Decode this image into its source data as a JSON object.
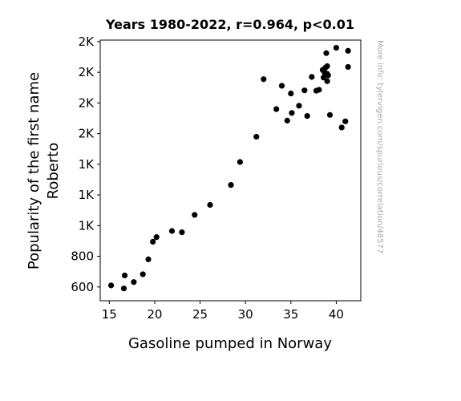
{
  "chart_data": {
    "type": "scatter",
    "title": "Years 1980-2022, r=0.964, p<0.01",
    "xlabel": "Gasoline pumped in Norway",
    "ylabel_lines": [
      "Popularity of the first name",
      "Roberto"
    ],
    "watermark": "More info: tylervigen.com/spurious/correlation/48577",
    "xlim": [
      14.0,
      42.7
    ],
    "ylim": [
      510,
      2210
    ],
    "x_ticks": [
      15,
      20,
      25,
      30,
      35,
      40
    ],
    "y_ticks": [
      {
        "value": 600,
        "label": "600"
      },
      {
        "value": 800,
        "label": "800"
      },
      {
        "value": 1000,
        "label": "1K"
      },
      {
        "value": 1200,
        "label": "1K"
      },
      {
        "value": 1400,
        "label": "1K"
      },
      {
        "value": 1600,
        "label": "2K"
      },
      {
        "value": 1800,
        "label": "2K"
      },
      {
        "value": 2000,
        "label": "2K"
      },
      {
        "value": 2200,
        "label": "2K"
      }
    ],
    "grid": false,
    "point_color": "#000000",
    "points": [
      {
        "x": 15.2,
        "y": 610
      },
      {
        "x": 16.6,
        "y": 590
      },
      {
        "x": 16.7,
        "y": 675
      },
      {
        "x": 17.7,
        "y": 632
      },
      {
        "x": 18.7,
        "y": 683
      },
      {
        "x": 19.3,
        "y": 780
      },
      {
        "x": 19.8,
        "y": 895
      },
      {
        "x": 20.2,
        "y": 925
      },
      {
        "x": 21.9,
        "y": 965
      },
      {
        "x": 23.0,
        "y": 957
      },
      {
        "x": 24.4,
        "y": 1070
      },
      {
        "x": 26.1,
        "y": 1135
      },
      {
        "x": 28.4,
        "y": 1265
      },
      {
        "x": 29.4,
        "y": 1415
      },
      {
        "x": 31.2,
        "y": 1580
      },
      {
        "x": 32.0,
        "y": 1955
      },
      {
        "x": 33.4,
        "y": 1760
      },
      {
        "x": 34.0,
        "y": 1912
      },
      {
        "x": 34.6,
        "y": 1685
      },
      {
        "x": 35.0,
        "y": 1862
      },
      {
        "x": 35.1,
        "y": 1735
      },
      {
        "x": 35.9,
        "y": 1782
      },
      {
        "x": 36.5,
        "y": 1882
      },
      {
        "x": 36.8,
        "y": 1715
      },
      {
        "x": 37.3,
        "y": 1970
      },
      {
        "x": 37.8,
        "y": 1880
      },
      {
        "x": 38.1,
        "y": 1886
      },
      {
        "x": 38.5,
        "y": 2015
      },
      {
        "x": 38.6,
        "y": 1966
      },
      {
        "x": 38.7,
        "y": 2000
      },
      {
        "x": 38.8,
        "y": 2030
      },
      {
        "x": 38.9,
        "y": 2125
      },
      {
        "x": 39.0,
        "y": 2040
      },
      {
        "x": 39.0,
        "y": 1990
      },
      {
        "x": 39.0,
        "y": 1942
      },
      {
        "x": 39.1,
        "y": 1980
      },
      {
        "x": 39.3,
        "y": 1722
      },
      {
        "x": 40.0,
        "y": 2160
      },
      {
        "x": 40.6,
        "y": 1640
      },
      {
        "x": 41.0,
        "y": 1680
      },
      {
        "x": 41.3,
        "y": 2140
      },
      {
        "x": 41.3,
        "y": 2035
      }
    ]
  }
}
